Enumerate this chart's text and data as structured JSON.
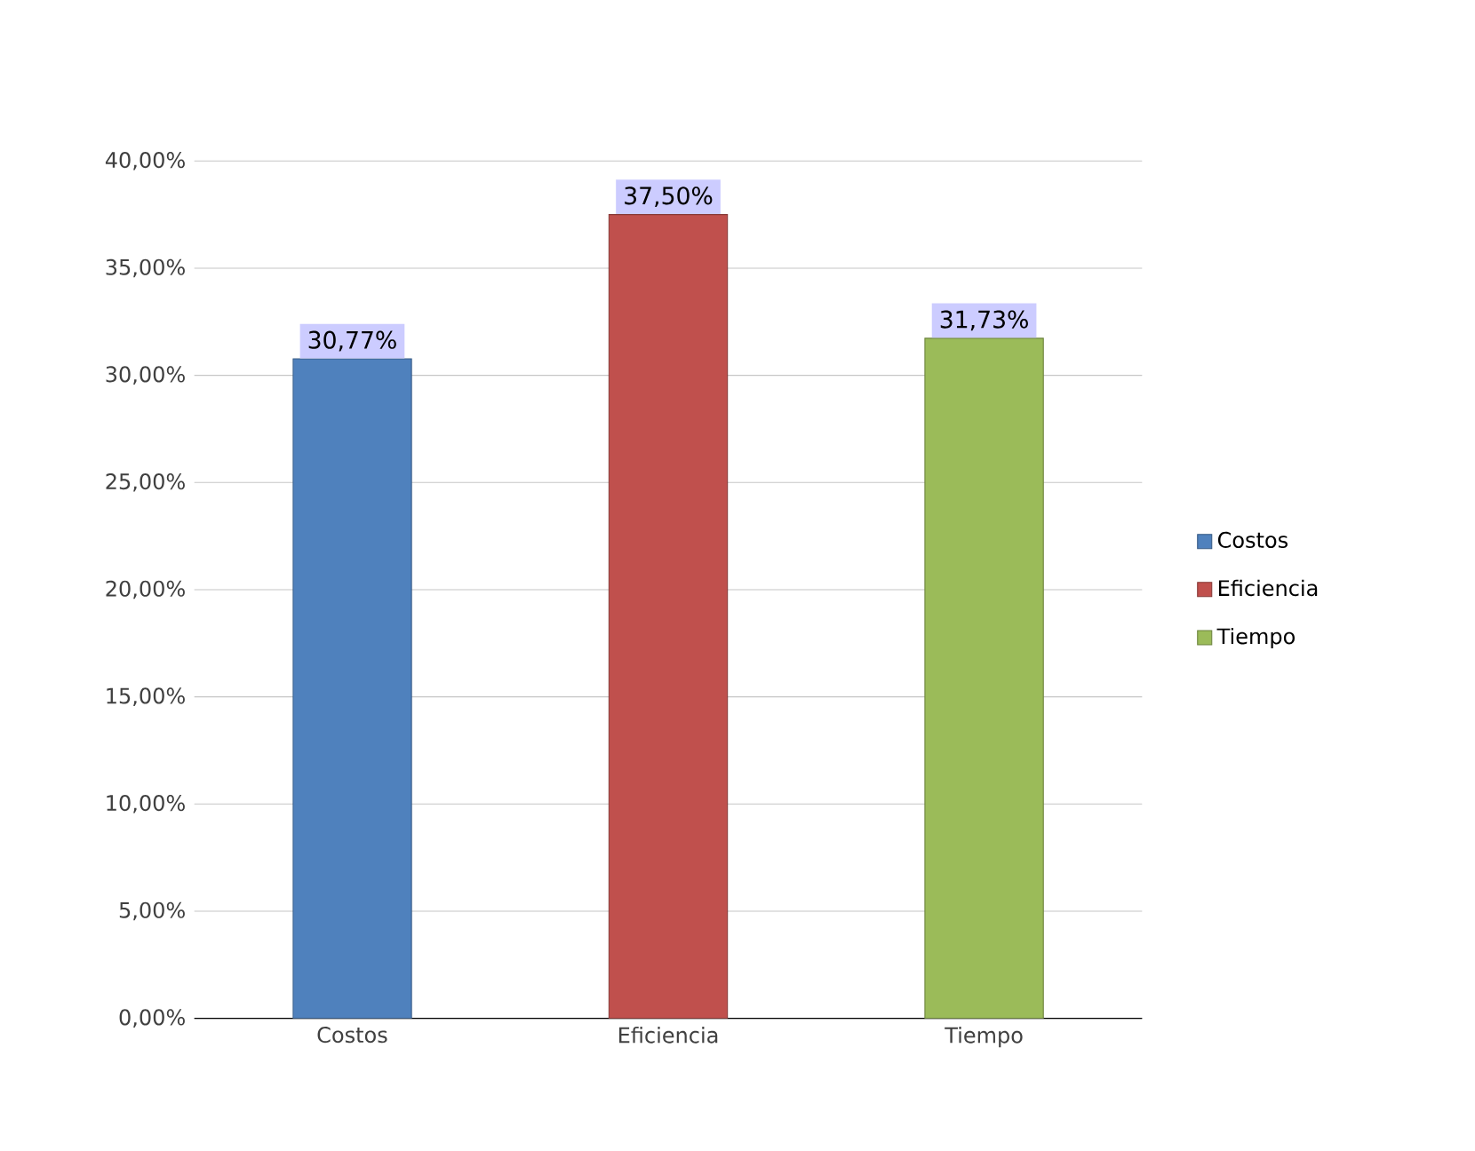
{
  "chart_data": {
    "type": "bar",
    "categories": [
      "Costos",
      "Eficiencia",
      "Tiempo"
    ],
    "series": [
      {
        "name": "Costos",
        "color": "#4f81bd",
        "values": [
          30.77,
          null,
          null
        ],
        "value_labels": [
          "30,77%",
          null,
          null
        ]
      },
      {
        "name": "Eficiencia",
        "color": "#c0504d",
        "values": [
          null,
          37.5,
          null
        ],
        "value_labels": [
          null,
          "37,50%",
          null
        ]
      },
      {
        "name": "Tiempo",
        "color": "#9bbb59",
        "values": [
          null,
          null,
          31.73
        ],
        "value_labels": [
          null,
          null,
          "31,73%"
        ]
      }
    ],
    "ylim": [
      0,
      40
    ],
    "yticks": [
      {
        "value": 0,
        "label": "0,00%"
      },
      {
        "value": 5,
        "label": "5,00%"
      },
      {
        "value": 10,
        "label": "10,00%"
      },
      {
        "value": 15,
        "label": "15,00%"
      },
      {
        "value": 20,
        "label": "20,00%"
      },
      {
        "value": 25,
        "label": "25,00%"
      },
      {
        "value": 30,
        "label": "30,00%"
      },
      {
        "value": 35,
        "label": "35,00%"
      },
      {
        "value": 40,
        "label": "40,00%"
      }
    ],
    "grid": "y",
    "legend": "right"
  }
}
